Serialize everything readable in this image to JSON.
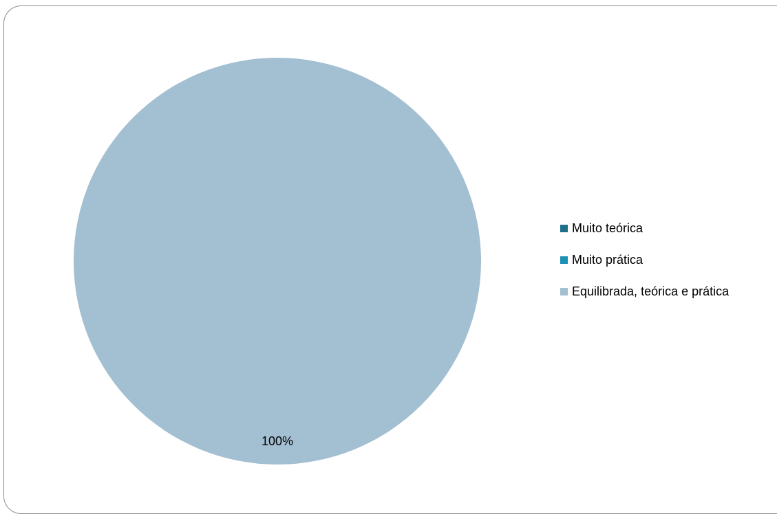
{
  "chart_data": {
    "type": "pie",
    "title": "",
    "categories": [
      "Muito teórica",
      "Muito prática",
      "Equilibrada, teórica e prática"
    ],
    "values": [
      0,
      0,
      100
    ],
    "data_labels": [
      "",
      "",
      "100%"
    ],
    "colors": [
      "#1f6e8c",
      "#1d91b3",
      "#a3bfd2"
    ],
    "legend_position": "right"
  }
}
